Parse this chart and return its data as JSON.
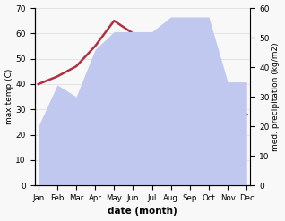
{
  "months": [
    "Jan",
    "Feb",
    "Mar",
    "Apr",
    "May",
    "Jun",
    "Jul",
    "Aug",
    "Sep",
    "Oct",
    "Nov",
    "Dec"
  ],
  "temperature": [
    40,
    43,
    47,
    55,
    65,
    60,
    48,
    37,
    37,
    35,
    33,
    28
  ],
  "precipitation": [
    20,
    34,
    30,
    46,
    52,
    52,
    52,
    57,
    57,
    57,
    35,
    35
  ],
  "temp_color": "#b03040",
  "precip_color": "#c0c8f0",
  "title_left": "max temp (C)",
  "title_right": "med. precipitation (kg/m2)",
  "xlabel": "date (month)",
  "ylim_left": [
    0,
    70
  ],
  "ylim_right": [
    0,
    60
  ],
  "yticks_left": [
    0,
    10,
    20,
    30,
    40,
    50,
    60,
    70
  ],
  "yticks_right": [
    0,
    10,
    20,
    30,
    40,
    50,
    60
  ],
  "bg_color": "#f8f8f8",
  "grid_color": "#e0e0e0"
}
